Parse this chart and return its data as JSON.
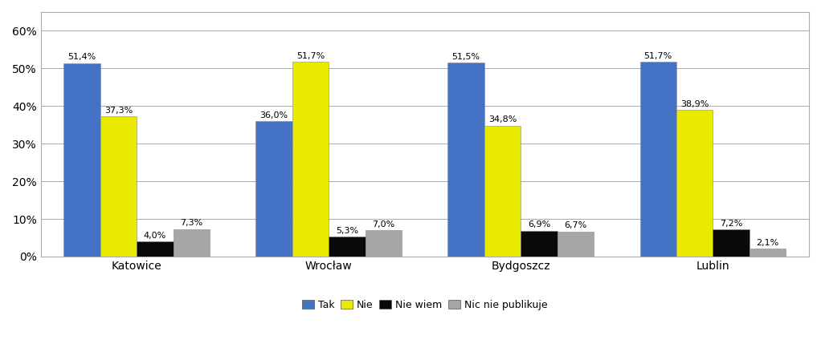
{
  "categories": [
    "Katowice",
    "Wrocław",
    "Bydgoszcz",
    "Lublin"
  ],
  "series": {
    "Tak": [
      51.4,
      36.0,
      51.5,
      51.7
    ],
    "Nie": [
      37.3,
      51.7,
      34.8,
      38.9
    ],
    "Nie wiem": [
      4.0,
      5.3,
      6.9,
      7.2
    ],
    "Nic nie publikuje": [
      7.3,
      7.0,
      6.7,
      2.1
    ]
  },
  "colors": {
    "Tak": "#4472C4",
    "Nie": "#EAEA00",
    "Nie wiem": "#0A0A0A",
    "Nic nie publikuje": "#A6A6A6"
  },
  "ylim": [
    0,
    65
  ],
  "yticks": [
    0,
    10,
    20,
    30,
    40,
    50,
    60
  ],
  "ytick_labels": [
    "0%",
    "10%",
    "20%",
    "30%",
    "40%",
    "50%",
    "60%"
  ],
  "bar_width": 0.19,
  "label_fontsize": 8.0,
  "axis_fontsize": 10,
  "legend_fontsize": 9,
  "background_color": "#FFFFFF",
  "grid_color": "#AAAAAA"
}
